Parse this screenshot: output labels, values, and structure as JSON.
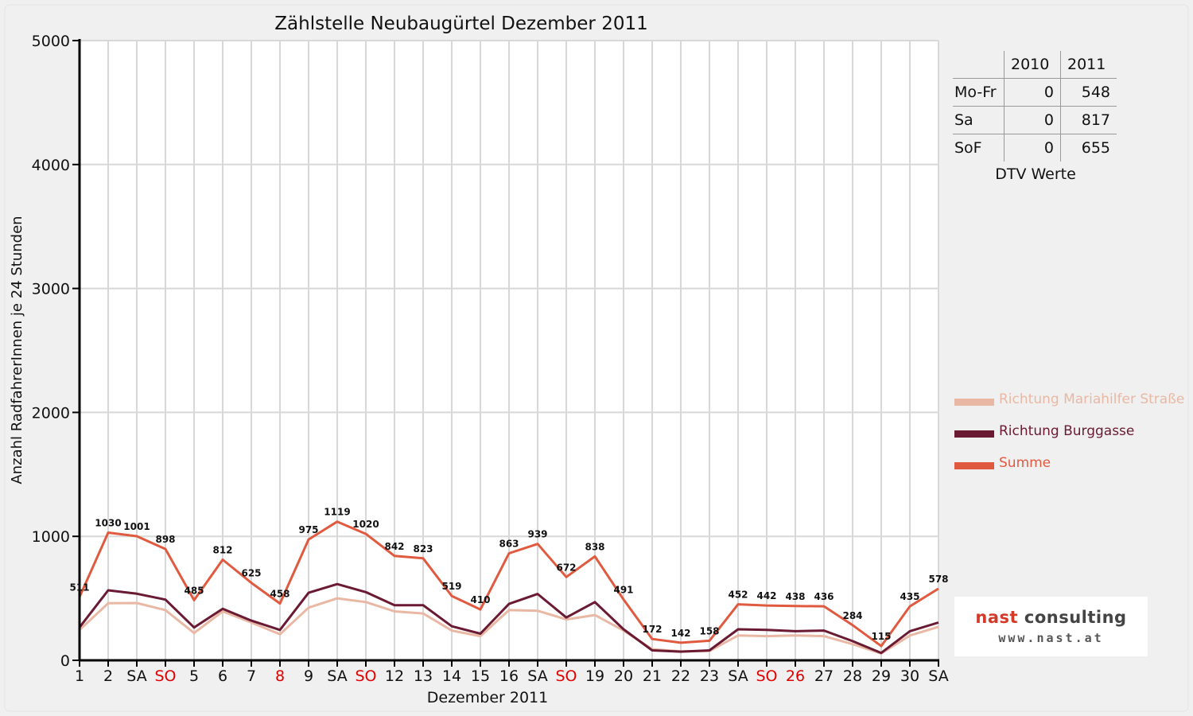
{
  "colors": {
    "frame_background": "#f0f0f0",
    "plot_background": "#ffffff",
    "grid": "#d8d8d8",
    "axis": "#000000",
    "holiday_label": "#e00000"
  },
  "chart_data": {
    "type": "line",
    "title": "Zählstelle Neubaugürtel Dezember 2011",
    "xlabel": "Dezember 2011",
    "ylabel": "Anzahl RadfahrerInnen je 24 Stunden",
    "ylim": [
      0,
      5000
    ],
    "yticks": [
      0,
      1000,
      2000,
      3000,
      4000,
      5000
    ],
    "grid": true,
    "legend_position": "right",
    "categories": [
      "1",
      "2",
      "SA",
      "SO",
      "5",
      "6",
      "7",
      "8",
      "9",
      "SA",
      "SO",
      "12",
      "13",
      "14",
      "15",
      "16",
      "SA",
      "SO",
      "19",
      "20",
      "21",
      "22",
      "23",
      "SA",
      "SO",
      "26",
      "27",
      "28",
      "29",
      "30",
      "SA"
    ],
    "holiday_categories": [
      3,
      7,
      10,
      17,
      24,
      25
    ],
    "series": [
      {
        "name": "Richtung Mariahilfer Straße",
        "color": "#e9b8a5",
        "values": [
          245,
          460,
          462,
          405,
          220,
          395,
          305,
          210,
          425,
          500,
          470,
          395,
          378,
          240,
          195,
          405,
          400,
          330,
          365,
          240,
          90,
          72,
          75,
          200,
          195,
          200,
          195,
          130,
          55,
          200,
          270
        ]
      },
      {
        "name": "Richtung Burggasse",
        "color": "#6a1a32",
        "values": [
          266,
          565,
          537,
          490,
          265,
          415,
          320,
          245,
          545,
          615,
          550,
          445,
          445,
          275,
          215,
          455,
          535,
          345,
          470,
          250,
          80,
          70,
          80,
          250,
          245,
          235,
          240,
          155,
          60,
          235,
          305
        ]
      },
      {
        "name": "Summe",
        "color": "#e05a40",
        "values": [
          511,
          1030,
          1001,
          898,
          485,
          812,
          625,
          458,
          975,
          1119,
          1020,
          842,
          823,
          519,
          410,
          863,
          939,
          672,
          838,
          491,
          172,
          142,
          158,
          452,
          442,
          438,
          436,
          284,
          115,
          435,
          578
        ]
      }
    ],
    "data_labels_series": "Summe"
  },
  "dtv_table": {
    "headers": [
      "",
      "2010",
      "2011"
    ],
    "rows": [
      {
        "label": "Mo-Fr",
        "v2010": "0",
        "v2011": "548"
      },
      {
        "label": "Sa",
        "v2010": "0",
        "v2011": "817"
      },
      {
        "label": "SoF",
        "v2010": "0",
        "v2011": "655"
      }
    ],
    "caption": "DTV Werte"
  },
  "logo": {
    "name_part1": "nast",
    "name_part2": " consulting",
    "url": "www.nast.at"
  }
}
